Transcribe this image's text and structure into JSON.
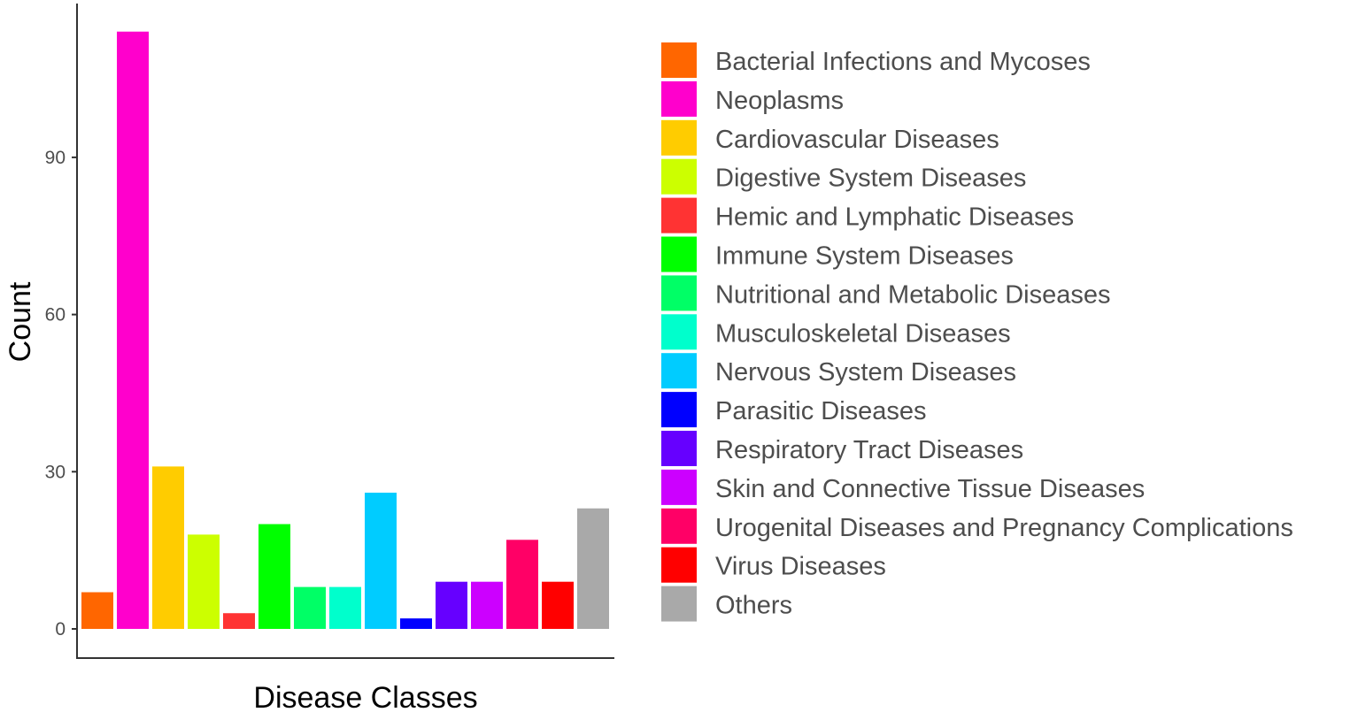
{
  "chart_data": {
    "type": "bar",
    "xlabel": "Disease Classes",
    "ylabel": "Count",
    "ylim": [
      0,
      120
    ],
    "yticks": [
      0,
      30,
      60,
      90
    ],
    "grid": false,
    "legend_position": "right",
    "categories": [
      "Bacterial Infections and Mycoses",
      "Neoplasms",
      "Cardiovascular Diseases",
      "Digestive System Diseases",
      "Hemic and Lymphatic Diseases",
      "Immune System Diseases",
      "Nutritional and Metabolic Diseases",
      "Musculoskeletal Diseases",
      "Nervous System Diseases",
      "Parasitic Diseases",
      "Respiratory Tract Diseases",
      "Skin and Connective Tissue Diseases",
      "Urogenital Diseases and Pregnancy Complications",
      "Virus Diseases",
      "Others"
    ],
    "values": [
      7,
      114,
      31,
      18,
      3,
      20,
      8,
      8,
      26,
      2,
      9,
      9,
      17,
      9,
      23
    ],
    "colors": [
      "#FF6600",
      "#FF00CC",
      "#FFCC00",
      "#CCFF00",
      "#FF3333",
      "#00FF00",
      "#00FF66",
      "#00FFCC",
      "#00CCFF",
      "#0000FF",
      "#6600FF",
      "#CC00FF",
      "#FF0066",
      "#FF0000",
      "#A9A9A9"
    ]
  }
}
